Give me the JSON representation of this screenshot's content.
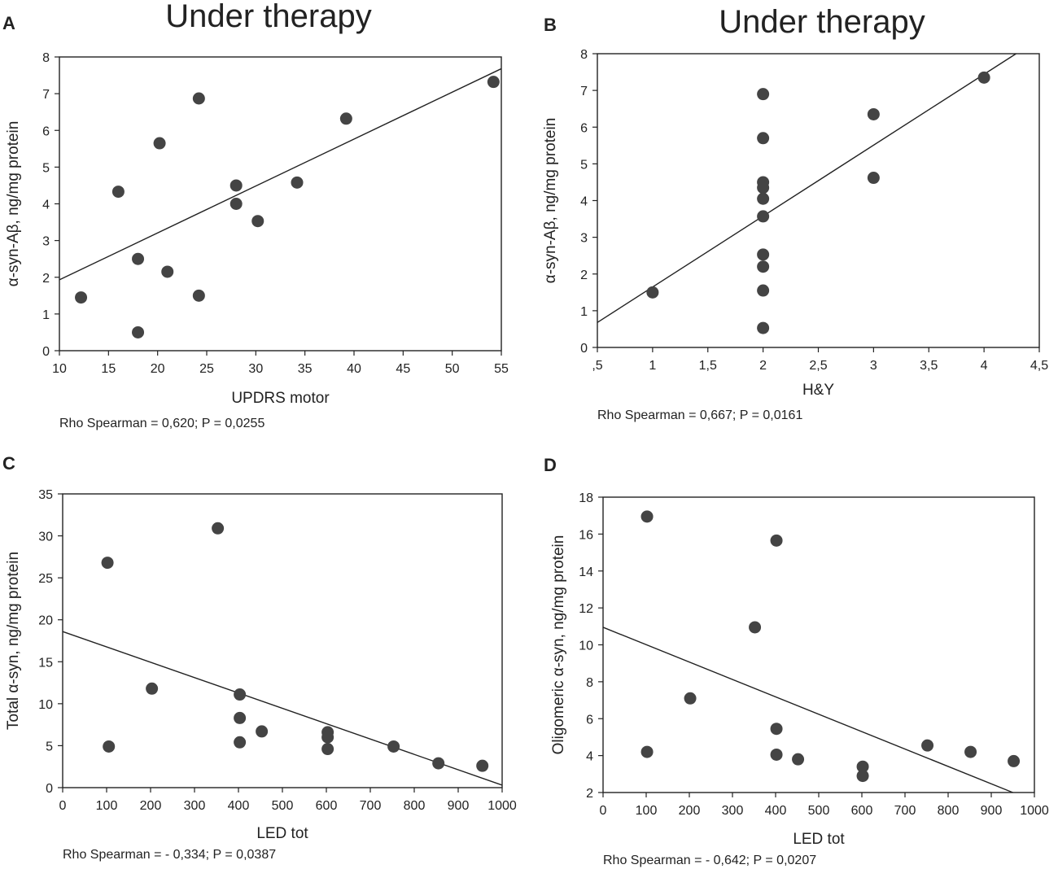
{
  "chart_data": [
    {
      "type": "scatter",
      "panel": "A",
      "title": "Under therapy",
      "xlabel": "UPDRS motor",
      "ylabel": "α-syn-Aβ, ng/mg protein",
      "xlim": [
        10,
        55
      ],
      "ylim": [
        0,
        8
      ],
      "xticks": [
        10,
        15,
        20,
        25,
        30,
        35,
        40,
        45,
        50,
        55
      ],
      "xtick_labels": [
        "10",
        "15",
        "20",
        "25",
        "30",
        "35",
        "40",
        "45",
        "50",
        "55"
      ],
      "yticks": [
        0,
        1,
        2,
        3,
        4,
        5,
        6,
        7,
        8
      ],
      "ytick_labels": [
        "0",
        "1",
        "2",
        "3",
        "4",
        "5",
        "6",
        "7",
        "8"
      ],
      "points": [
        [
          12.2,
          1.45
        ],
        [
          16,
          4.33
        ],
        [
          18,
          2.5
        ],
        [
          18,
          0.5
        ],
        [
          20.2,
          5.65
        ],
        [
          21,
          2.15
        ],
        [
          24.2,
          6.87
        ],
        [
          24.2,
          1.5
        ],
        [
          28,
          4.5
        ],
        [
          28,
          4.0
        ],
        [
          30.2,
          3.53
        ],
        [
          34.2,
          4.58
        ],
        [
          39.2,
          6.32
        ],
        [
          54.2,
          7.32
        ]
      ],
      "fit_line": {
        "x": [
          10,
          55
        ],
        "y": [
          1.93,
          7.68
        ]
      },
      "stat": "Rho Spearman = 0,620; P = 0,0255"
    },
    {
      "type": "scatter",
      "panel": "B",
      "title": "Under therapy",
      "xlabel": "H&Y",
      "ylabel": "α-syn-Aβ, ng/mg protein",
      "xlim": [
        0.5,
        4.5
      ],
      "ylim": [
        0,
        8
      ],
      "xticks": [
        0.5,
        1,
        1.5,
        2,
        2.5,
        3,
        3.5,
        4,
        4.5
      ],
      "xtick_labels": [
        ",5",
        "1",
        "1,5",
        "2",
        "2,5",
        "3",
        "3,5",
        "4",
        "4,5"
      ],
      "yticks": [
        0,
        1,
        2,
        3,
        4,
        5,
        6,
        7,
        8
      ],
      "ytick_labels": [
        "0",
        "1",
        "2",
        "3",
        "4",
        "5",
        "6",
        "7",
        "8"
      ],
      "points": [
        [
          1,
          1.5
        ],
        [
          2,
          6.9
        ],
        [
          2,
          5.7
        ],
        [
          2,
          4.5
        ],
        [
          2,
          4.35
        ],
        [
          2,
          4.05
        ],
        [
          2,
          3.57
        ],
        [
          2,
          2.53
        ],
        [
          2,
          2.2
        ],
        [
          2,
          1.55
        ],
        [
          2,
          0.53
        ],
        [
          3,
          6.35
        ],
        [
          3,
          4.62
        ],
        [
          4,
          7.35
        ]
      ],
      "fit_line": {
        "x": [
          0.5,
          4.29
        ],
        "y": [
          0.68,
          8.0
        ]
      },
      "stat": "Rho Spearman = 0,667; P = 0,0161"
    },
    {
      "type": "scatter",
      "panel": "C",
      "title": "",
      "xlabel": "LED tot",
      "ylabel": "Total α-syn, ng/mg protein",
      "xlim": [
        0,
        1000
      ],
      "ylim": [
        0,
        35
      ],
      "xticks": [
        0,
        100,
        200,
        300,
        400,
        500,
        600,
        700,
        800,
        900,
        1000
      ],
      "xtick_labels": [
        "0",
        "100",
        "200",
        "300",
        "400",
        "500",
        "600",
        "700",
        "800",
        "900",
        "1000"
      ],
      "yticks": [
        0,
        5,
        10,
        15,
        20,
        25,
        30,
        35
      ],
      "ytick_labels": [
        "0",
        "5",
        "10",
        "15",
        "20",
        "25",
        "30",
        "35"
      ],
      "points": [
        [
          102,
          26.8
        ],
        [
          105,
          4.9
        ],
        [
          203,
          11.8
        ],
        [
          353,
          30.9
        ],
        [
          403,
          11.1
        ],
        [
          403,
          8.3
        ],
        [
          403,
          5.4
        ],
        [
          453,
          6.7
        ],
        [
          603,
          6.6
        ],
        [
          603,
          6.0
        ],
        [
          603,
          4.6
        ],
        [
          753,
          4.9
        ],
        [
          855,
          2.9
        ],
        [
          955,
          2.6
        ]
      ],
      "fit_line": {
        "x": [
          0,
          1000
        ],
        "y": [
          18.6,
          0.3
        ]
      },
      "stat": "Rho Spearman = - 0,334; P = 0,0387"
    },
    {
      "type": "scatter",
      "panel": "D",
      "title": "",
      "xlabel": "LED tot",
      "ylabel": "Oligomeric α-syn, ng/mg protein",
      "xlim": [
        0,
        1000
      ],
      "ylim": [
        2,
        18
      ],
      "xticks": [
        0,
        100,
        200,
        300,
        400,
        500,
        600,
        700,
        800,
        900,
        1000
      ],
      "xtick_labels": [
        "0",
        "100",
        "200",
        "300",
        "400",
        "500",
        "600",
        "700",
        "800",
        "900",
        "1000"
      ],
      "yticks": [
        2,
        4,
        6,
        8,
        10,
        12,
        14,
        16,
        18
      ],
      "ytick_labels": [
        "2",
        "4",
        "6",
        "8",
        "10",
        "12",
        "14",
        "16",
        "18"
      ],
      "points": [
        [
          102,
          16.95
        ],
        [
          102,
          4.2
        ],
        [
          202,
          7.1
        ],
        [
          352,
          10.95
        ],
        [
          402,
          15.65
        ],
        [
          402,
          5.45
        ],
        [
          402,
          4.05
        ],
        [
          452,
          3.8
        ],
        [
          602,
          3.4
        ],
        [
          602,
          2.9
        ],
        [
          752,
          4.55
        ],
        [
          852,
          4.2
        ],
        [
          952,
          3.7
        ]
      ],
      "fit_line": {
        "x": [
          0,
          950
        ],
        "y": [
          10.95,
          2.0
        ]
      },
      "stat": "Rho Spearman = - 0,642; P = 0,0207"
    }
  ]
}
